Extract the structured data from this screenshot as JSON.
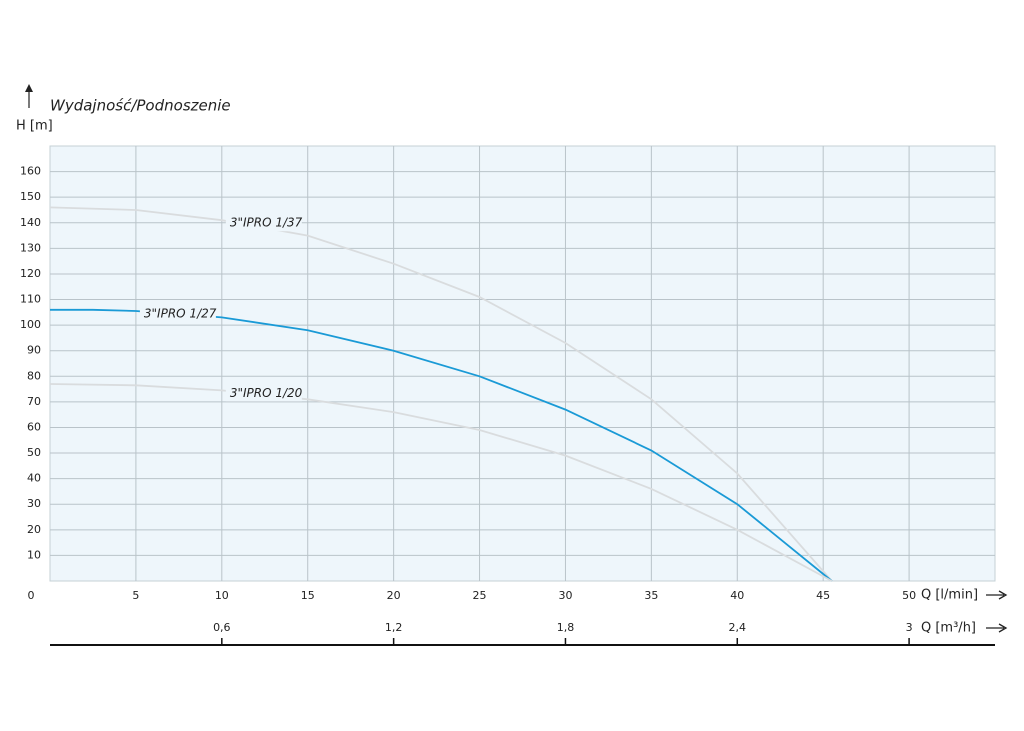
{
  "chart_data": {
    "type": "line",
    "title": "Wydajność/Podnoszenie",
    "y_label": "H [m]",
    "x_label": "Q [l/min]",
    "x2_label": "Q [m³/h]",
    "xlim": [
      0,
      55
    ],
    "xticks": [
      0,
      5,
      10,
      15,
      20,
      25,
      30,
      35,
      40,
      45,
      50
    ],
    "x2lim": [
      0,
      3.3
    ],
    "x2ticks": [
      {
        "value": 0.6,
        "label": "0,6"
      },
      {
        "value": 1.2,
        "label": "1,2"
      },
      {
        "value": 1.8,
        "label": "1,8"
      },
      {
        "value": 2.4,
        "label": "2,4"
      },
      3
    ],
    "ylim": [
      0,
      170
    ],
    "yticks": [
      10,
      20,
      30,
      40,
      50,
      60,
      70,
      80,
      90,
      100,
      110,
      120,
      130,
      140,
      150,
      160
    ],
    "grid": true,
    "series": [
      {
        "name": "3\"IPRO 1/37",
        "color": "#d9dcde",
        "x": [
          0,
          5,
          10,
          15,
          20,
          25,
          30,
          35,
          40,
          45.5
        ],
        "values": [
          146,
          145,
          141,
          135,
          124,
          111,
          93,
          71,
          42,
          0
        ]
      },
      {
        "name": "3\"IPRO 1/27",
        "color": "#1a9ad6",
        "x": [
          0,
          2.5,
          5,
          10,
          15,
          20,
          25,
          30,
          35,
          40,
          45.5
        ],
        "values": [
          106,
          106,
          105.5,
          103,
          98,
          90,
          80,
          67,
          51,
          30,
          0
        ]
      },
      {
        "name": "3\"IPRO 1/20",
        "color": "#d9dcde",
        "x": [
          0,
          5,
          10,
          15,
          20,
          25,
          30,
          35,
          40,
          45.5
        ],
        "values": [
          77,
          76.5,
          74.5,
          71,
          66,
          59,
          49,
          36,
          20,
          0
        ]
      }
    ]
  }
}
